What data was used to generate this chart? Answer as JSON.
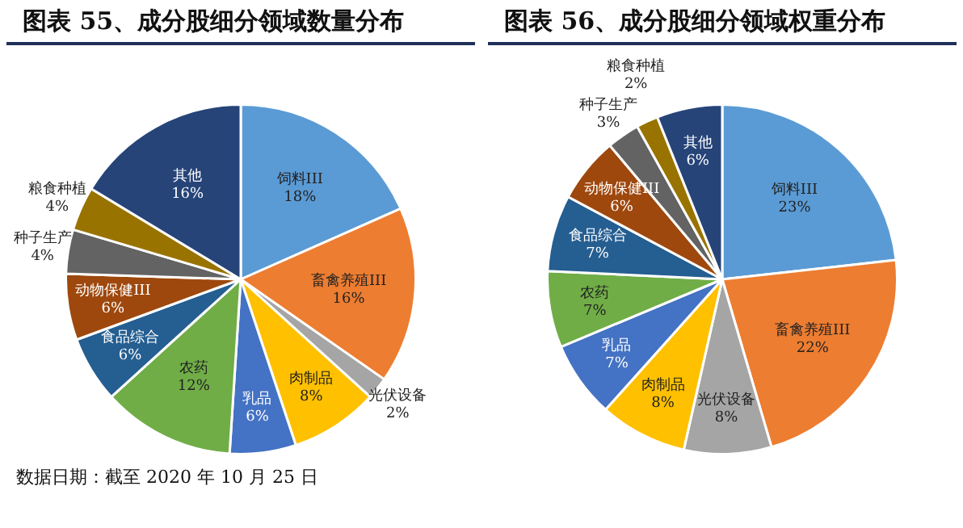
{
  "chart_data": [
    {
      "type": "pie",
      "title": "图表 55、成分股细分领域数量分布",
      "categories": [
        "饲料III",
        "畜禽养殖III",
        "光伏设备",
        "肉制品",
        "乳品",
        "农药",
        "食品综合",
        "动物保健III",
        "种子生产",
        "粮食种植",
        "其他"
      ],
      "values": [
        18,
        16,
        2,
        8,
        6,
        12,
        6,
        6,
        4,
        4,
        16
      ],
      "value_labels": [
        "18%",
        "16%",
        "2%",
        "8%",
        "6%",
        "12%",
        "6%",
        "6%",
        "4%",
        "4%",
        "16%"
      ],
      "colors": [
        "#5b9bd5",
        "#ed7d31",
        "#a5a5a5",
        "#ffc000",
        "#4472c4",
        "#70ad47",
        "#255e91",
        "#9e480e",
        "#636363",
        "#997300",
        "#264478"
      ],
      "annotations": [
        "数据日期：截至 2020 年 10 月 25 日"
      ]
    },
    {
      "type": "pie",
      "title": "图表 56、成分股细分领域权重分布",
      "categories": [
        "饲料III",
        "畜禽养殖III",
        "光伏设备",
        "肉制品",
        "乳品",
        "农药",
        "食品综合",
        "动物保健III",
        "种子生产",
        "粮食种植",
        "其他"
      ],
      "values": [
        23,
        22,
        8,
        8,
        7,
        7,
        7,
        6,
        3,
        2,
        6
      ],
      "value_labels": [
        "23%",
        "22%",
        "8%",
        "8%",
        "7%",
        "7%",
        "7%",
        "6%",
        "3%",
        "2%",
        "6%"
      ],
      "colors": [
        "#5b9bd5",
        "#ed7d31",
        "#a5a5a5",
        "#ffc000",
        "#4472c4",
        "#70ad47",
        "#255e91",
        "#9e480e",
        "#636363",
        "#997300",
        "#264478"
      ]
    }
  ]
}
